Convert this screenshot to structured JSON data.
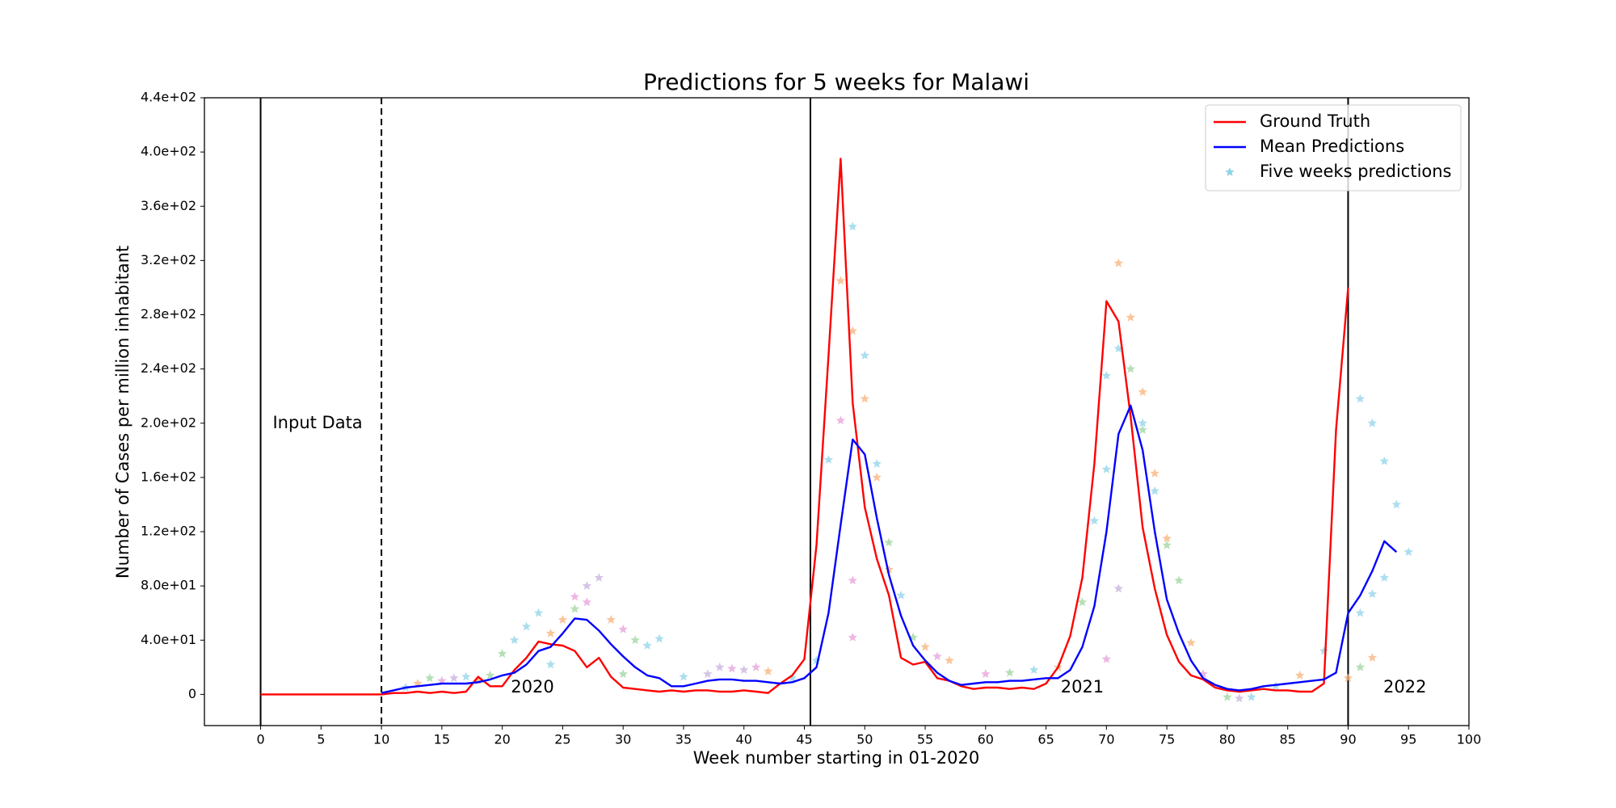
{
  "chart_data": {
    "type": "line",
    "title": "Predictions for 5 weeks for Malawi",
    "x_label": "Week number starting in 01-2020",
    "y_label": "Number of Cases per million inhabitant",
    "xlim": [
      -4.65,
      100
    ],
    "ylim": [
      -23,
      440
    ],
    "xticks": [
      0,
      5,
      10,
      15,
      20,
      25,
      30,
      35,
      40,
      45,
      50,
      55,
      60,
      65,
      70,
      75,
      80,
      85,
      90,
      95,
      100
    ],
    "yticks": [
      0,
      {
        "value": 40,
        "label": "4.0e+01"
      },
      {
        "value": 80,
        "label": "8.0e+01"
      },
      {
        "value": 120,
        "label": "1.2e+02"
      },
      {
        "value": 160,
        "label": "1.6e+02"
      },
      {
        "value": 200,
        "label": "2.0e+02"
      },
      {
        "value": 240,
        "label": "2.4e+02"
      },
      {
        "value": 280,
        "label": "2.8e+02"
      },
      {
        "value": 320,
        "label": "3.2e+02"
      },
      {
        "value": 360,
        "label": "3.6e+02"
      },
      {
        "value": 400,
        "label": "4.0e+02"
      },
      {
        "value": 440,
        "label": "4.4e+02"
      }
    ],
    "legend": "upper right",
    "vlines": [
      0,
      45.5,
      90
    ],
    "dashed_vlines": [
      10
    ],
    "annotations": [
      {
        "text": "Input Data",
        "x": 1,
        "y": 200
      },
      {
        "text": "2020",
        "x": 22.5,
        "y": 5
      },
      {
        "text": "2021",
        "x": 68,
        "y": 5
      },
      {
        "text": "2022",
        "x": 94.7,
        "y": 5
      }
    ],
    "series": [
      {
        "name": "Ground Truth",
        "type": "line",
        "color": "#ff0000",
        "x": [
          0,
          1,
          2,
          3,
          4,
          5,
          6,
          7,
          8,
          9,
          10,
          11,
          12,
          13,
          14,
          15,
          16,
          17,
          18,
          19,
          20,
          21,
          22,
          23,
          24,
          25,
          26,
          27,
          28,
          29,
          30,
          31,
          32,
          33,
          34,
          35,
          36,
          37,
          38,
          39,
          40,
          41,
          42,
          43,
          44,
          45,
          46,
          47,
          48,
          49,
          50,
          51,
          52,
          53,
          54,
          55,
          56,
          57,
          58,
          59,
          60,
          61,
          62,
          63,
          64,
          65,
          66,
          67,
          68,
          69,
          70,
          71,
          72,
          73,
          74,
          75,
          76,
          77,
          78,
          79,
          80,
          81,
          82,
          83,
          84,
          85,
          86,
          87,
          88,
          89,
          90
        ],
        "values": [
          0,
          0,
          0,
          0,
          0,
          0,
          0,
          0,
          0,
          0,
          0,
          1,
          1,
          2,
          1,
          2,
          1,
          2,
          13,
          6,
          6,
          18,
          27,
          39,
          37,
          36,
          32,
          20,
          27,
          13,
          5,
          4,
          3,
          2,
          3,
          2,
          3,
          3,
          2,
          2,
          3,
          2,
          1,
          8,
          14,
          26,
          110,
          250,
          395,
          215,
          138,
          100,
          73,
          27,
          22,
          24,
          12,
          10,
          6,
          4,
          5,
          5,
          4,
          5,
          4,
          8,
          20,
          43,
          86,
          170,
          290,
          275,
          205,
          123,
          78,
          44,
          24,
          14,
          11,
          5,
          3,
          2,
          3,
          4,
          3,
          3,
          2,
          2,
          8,
          195,
          300
        ]
      },
      {
        "name": "Mean Predictions",
        "type": "line",
        "color": "#0000ff",
        "x": [
          10,
          11,
          12,
          13,
          14,
          15,
          16,
          17,
          18,
          19,
          20,
          21,
          22,
          23,
          24,
          25,
          26,
          27,
          28,
          29,
          30,
          31,
          32,
          33,
          34,
          35,
          36,
          37,
          38,
          39,
          40,
          41,
          42,
          43,
          44,
          45,
          46,
          47,
          48,
          49,
          50,
          51,
          52,
          53,
          54,
          55,
          56,
          57,
          58,
          59,
          60,
          61,
          62,
          63,
          64,
          65,
          66,
          67,
          68,
          69,
          70,
          71,
          72,
          73,
          74,
          75,
          76,
          77,
          78,
          79,
          80,
          81,
          82,
          83,
          84,
          85,
          86,
          87,
          88,
          89,
          90,
          91,
          92,
          93,
          94
        ],
        "values": [
          1,
          3,
          5,
          6,
          7,
          8,
          8,
          8,
          9,
          11,
          14,
          16,
          22,
          32,
          35,
          45,
          56,
          55,
          47,
          37,
          28,
          20,
          14,
          12,
          6,
          6,
          8,
          10,
          11,
          11,
          10,
          10,
          9,
          8,
          9,
          12,
          20,
          60,
          125,
          188,
          177,
          130,
          88,
          58,
          36,
          25,
          16,
          10,
          7,
          8,
          9,
          9,
          10,
          10,
          11,
          12,
          12,
          18,
          35,
          65,
          120,
          192,
          213,
          180,
          120,
          70,
          45,
          25,
          12,
          7,
          4,
          3,
          4,
          6,
          7,
          8,
          9,
          10,
          11,
          16,
          60,
          73,
          91,
          113,
          105
        ]
      },
      {
        "name": "Five weeks predictions",
        "type": "scatter",
        "color": "#8fd3e8",
        "x": [
          12,
          13,
          14,
          15,
          16,
          17,
          18,
          19,
          20,
          21,
          22,
          23,
          24,
          25,
          26,
          27,
          28,
          29,
          30,
          31,
          32,
          33,
          24,
          26,
          27,
          30,
          35,
          37,
          38,
          39,
          40,
          41,
          42,
          44,
          46,
          47,
          48,
          48,
          49,
          49,
          49,
          49,
          50,
          50,
          51,
          51,
          52,
          52,
          53,
          54,
          55,
          56,
          57,
          60,
          62,
          64,
          66,
          68,
          69,
          70,
          70,
          70,
          71,
          71,
          71,
          72,
          72,
          73,
          73,
          73,
          74,
          74,
          75,
          75,
          76,
          77,
          78,
          80,
          81,
          82,
          84,
          86,
          88,
          90,
          91,
          91,
          91,
          92,
          92,
          92,
          93,
          93,
          94,
          95
        ],
        "values": [
          5,
          8,
          12,
          10,
          12,
          13,
          10,
          14,
          30,
          40,
          50,
          60,
          45,
          55,
          72,
          80,
          86,
          55,
          48,
          40,
          36,
          41,
          22,
          63,
          68,
          15,
          13,
          15,
          20,
          19,
          18,
          20,
          17,
          12,
          25,
          173,
          305,
          202,
          268,
          345,
          84,
          42,
          250,
          218,
          170,
          160,
          112,
          92,
          73,
          42,
          35,
          28,
          25,
          15,
          16,
          18,
          20,
          68,
          128,
          235,
          166,
          26,
          318,
          255,
          78,
          278,
          240,
          223,
          200,
          195,
          163,
          150,
          115,
          110,
          84,
          38,
          15,
          -2,
          -3,
          -2,
          6,
          14,
          32,
          12,
          218,
          60,
          20,
          200,
          74,
          27,
          172,
          86,
          140,
          105
        ],
        "colors": [
          "#8fd3e8",
          "#f7b27a",
          "#9ed49e",
          "#e5a0d8",
          "#c8b0de",
          "#8fd3e8",
          "#f7b27a",
          "#9ed49e",
          "#9ed49e",
          "#8fd3e8",
          "#8fd3e8",
          "#8fd3e8",
          "#f7b27a",
          "#f7b27a",
          "#e5a0d8",
          "#c8b0de",
          "#c8b0de",
          "#f7b27a",
          "#e5a0d8",
          "#9ed49e",
          "#8fd3e8",
          "#8fd3e8",
          "#8fd3e8",
          "#9ed49e",
          "#e5a0d8",
          "#9ed49e",
          "#8fd3e8",
          "#c8b0de",
          "#c8b0de",
          "#e5a0d8",
          "#c8b0de",
          "#e5a0d8",
          "#f7b27a",
          "#8fd3e8",
          "#8fd3e8",
          "#8fd3e8",
          "#f7b27a",
          "#e5a0d8",
          "#f7b27a",
          "#8fd3e8",
          "#e5a0d8",
          "#e5a0d8",
          "#8fd3e8",
          "#f7b27a",
          "#8fd3e8",
          "#f7b27a",
          "#9ed49e",
          "#f7b27a",
          "#8fd3e8",
          "#9ed49e",
          "#f7b27a",
          "#e5a0d8",
          "#f7b27a",
          "#e5a0d8",
          "#9ed49e",
          "#8fd3e8",
          "#f7b27a",
          "#9ed49e",
          "#8fd3e8",
          "#8fd3e8",
          "#8fd3e8",
          "#e5a0d8",
          "#f7b27a",
          "#8fd3e8",
          "#c8b0de",
          "#f7b27a",
          "#9ed49e",
          "#f7b27a",
          "#8fd3e8",
          "#9ed49e",
          "#f7b27a",
          "#8fd3e8",
          "#f7b27a",
          "#9ed49e",
          "#9ed49e",
          "#f7b27a",
          "#e5a0d8",
          "#9ed49e",
          "#c8b0de",
          "#8fd3e8",
          "#8fd3e8",
          "#f7b27a",
          "#8fd3e8",
          "#f7b27a",
          "#8fd3e8",
          "#8fd3e8",
          "#9ed49e",
          "#8fd3e8",
          "#8fd3e8",
          "#f7b27a",
          "#8fd3e8",
          "#8fd3e8",
          "#8fd3e8",
          "#8fd3e8"
        ]
      }
    ]
  }
}
